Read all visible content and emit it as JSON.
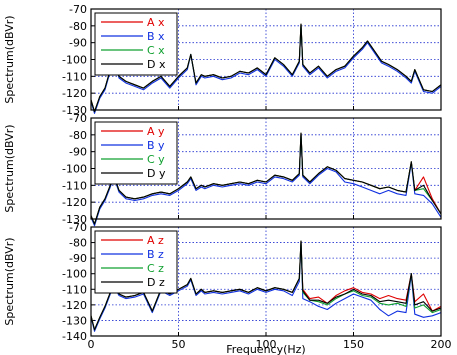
{
  "chart_data": [
    {
      "type": "line",
      "panel": "x",
      "ylabel": "Spectrum(dBVr)",
      "xlim": [
        0,
        200
      ],
      "ylim": [
        -130,
        -70
      ],
      "y_ticks": [
        "-70",
        "-80",
        "-90",
        "-100",
        "-110",
        "-120",
        "-130"
      ],
      "x": [
        0,
        2,
        5,
        8,
        11,
        13,
        16,
        20,
        25,
        30,
        35,
        40,
        45,
        50,
        55,
        57,
        60,
        63,
        65,
        70,
        75,
        80,
        85,
        90,
        95,
        100,
        105,
        110,
        115,
        119,
        120,
        121,
        125,
        130,
        135,
        140,
        145,
        150,
        155,
        158,
        162,
        166,
        170,
        175,
        180,
        183,
        185,
        190,
        195,
        200
      ],
      "series": [
        {
          "name": "A x",
          "color": "#e00000",
          "values": [
            -124,
            -131,
            -122,
            -117,
            -106,
            -98,
            -110,
            -113,
            -115,
            -117,
            -113,
            -110,
            -116,
            -110,
            -105,
            -97,
            -114,
            -109,
            -110,
            -109,
            -111,
            -110,
            -107,
            -108,
            -105,
            -109,
            -99,
            -103,
            -109,
            -101,
            -79,
            -103,
            -108,
            -104,
            -110,
            -106,
            -104,
            -98,
            -93,
            -89,
            -95,
            -101,
            -103,
            -106,
            -110,
            -113,
            -106,
            -118,
            -119,
            -115
          ]
        },
        {
          "name": "B x",
          "color": "#1030e0",
          "values": [
            -125,
            -132,
            -123,
            -118,
            -107,
            -98,
            -111,
            -114,
            -116,
            -118,
            -114,
            -111,
            -117,
            -111,
            -106,
            -97,
            -115,
            -110,
            -111,
            -110,
            -112,
            -111,
            -108,
            -109,
            -106,
            -110,
            -100,
            -104,
            -110,
            -102,
            -80,
            -104,
            -109,
            -105,
            -111,
            -107,
            -105,
            -99,
            -94,
            -90,
            -96,
            -102,
            -104,
            -107,
            -111,
            -114,
            -107,
            -119,
            -120,
            -116
          ]
        },
        {
          "name": "C x",
          "color": "#10a030",
          "values": [
            -124,
            -131,
            -122,
            -117,
            -106,
            -98,
            -110,
            -113,
            -115,
            -117,
            -113,
            -110,
            -116,
            -110,
            -105,
            -97,
            -114,
            -109,
            -110,
            -109,
            -111,
            -110,
            -107,
            -108,
            -105,
            -109,
            -99,
            -103,
            -109,
            -101,
            -79,
            -103,
            -108,
            -104,
            -110,
            -106,
            -104,
            -98,
            -93,
            -89,
            -95,
            -101,
            -103,
            -106,
            -110,
            -113,
            -106,
            -118,
            -119,
            -115
          ]
        },
        {
          "name": "D x",
          "color": "#000000",
          "values": [
            -124,
            -131,
            -122,
            -117,
            -106,
            -98,
            -110,
            -113,
            -115,
            -117,
            -113,
            -110,
            -116,
            -110,
            -105,
            -97,
            -114,
            -109,
            -110,
            -109,
            -111,
            -110,
            -107,
            -108,
            -105,
            -109,
            -99,
            -103,
            -109,
            -101,
            -79,
            -103,
            -108,
            -104,
            -110,
            -106,
            -104,
            -98,
            -93,
            -89,
            -95,
            -101,
            -103,
            -106,
            -110,
            -113,
            -106,
            -118,
            -119,
            -115
          ]
        }
      ]
    },
    {
      "type": "line",
      "panel": "y",
      "ylabel": "Spectrum(dBVr)",
      "xlim": [
        0,
        200
      ],
      "ylim": [
        -130,
        -70
      ],
      "y_ticks": [
        "-70",
        "-80",
        "-90",
        "-100",
        "-110",
        "-120",
        "-130"
      ],
      "x": [
        0,
        2,
        5,
        8,
        11,
        13,
        16,
        20,
        25,
        30,
        35,
        40,
        45,
        50,
        55,
        57,
        60,
        63,
        65,
        70,
        75,
        80,
        85,
        90,
        95,
        100,
        105,
        110,
        115,
        119,
        120,
        121,
        125,
        130,
        135,
        140,
        145,
        150,
        155,
        160,
        165,
        170,
        175,
        180,
        183,
        185,
        190,
        195,
        200
      ],
      "series": [
        {
          "name": "A y",
          "color": "#e00000",
          "values": [
            -128,
            -133,
            -123,
            -118,
            -110,
            -104,
            -113,
            -117,
            -118,
            -117,
            -115,
            -114,
            -115,
            -112,
            -108,
            -105,
            -112,
            -110,
            -111,
            -109,
            -110,
            -109,
            -108,
            -109,
            -107,
            -108,
            -104,
            -105,
            -107,
            -103,
            -79,
            -104,
            -108,
            -103,
            -99,
            -101,
            -106,
            -107,
            -108,
            -110,
            -112,
            -111,
            -113,
            -114,
            -96,
            -113,
            -105,
            -118,
            -127
          ]
        },
        {
          "name": "B y",
          "color": "#1030e0",
          "values": [
            -129,
            -134,
            -124,
            -119,
            -111,
            -105,
            -114,
            -118,
            -119,
            -118,
            -116,
            -115,
            -116,
            -113,
            -109,
            -106,
            -113,
            -111,
            -112,
            -110,
            -111,
            -110,
            -109,
            -110,
            -108,
            -109,
            -105,
            -106,
            -108,
            -104,
            -80,
            -105,
            -109,
            -104,
            -100,
            -102,
            -108,
            -109,
            -111,
            -113,
            -115,
            -113,
            -115,
            -116,
            -97,
            -115,
            -116,
            -121,
            -129
          ]
        },
        {
          "name": "C y",
          "color": "#10a030",
          "values": [
            -128,
            -133,
            -123,
            -118,
            -110,
            -104,
            -113,
            -117,
            -118,
            -117,
            -115,
            -114,
            -115,
            -112,
            -108,
            -105,
            -112,
            -110,
            -111,
            -109,
            -110,
            -109,
            -108,
            -109,
            -107,
            -108,
            -104,
            -105,
            -107,
            -103,
            -79,
            -104,
            -108,
            -103,
            -99,
            -101,
            -106,
            -107,
            -108,
            -110,
            -112,
            -111,
            -113,
            -114,
            -96,
            -113,
            -112,
            -119,
            -127
          ]
        },
        {
          "name": "D y",
          "color": "#000000",
          "values": [
            -128,
            -133,
            -123,
            -118,
            -110,
            -104,
            -113,
            -117,
            -118,
            -117,
            -115,
            -114,
            -115,
            -112,
            -108,
            -105,
            -112,
            -110,
            -111,
            -109,
            -110,
            -109,
            -108,
            -109,
            -107,
            -108,
            -104,
            -105,
            -107,
            -103,
            -79,
            -104,
            -108,
            -103,
            -99,
            -101,
            -106,
            -107,
            -108,
            -110,
            -112,
            -111,
            -113,
            -114,
            -96,
            -113,
            -110,
            -119,
            -127
          ]
        }
      ]
    },
    {
      "type": "line",
      "panel": "z",
      "xlabel": "Frequency(Hz)",
      "ylabel": "Spectrum(dBVr)",
      "xlim": [
        0,
        200
      ],
      "ylim": [
        -140,
        -70
      ],
      "x_ticks": [
        "0",
        "50",
        "100",
        "150",
        "200"
      ],
      "y_ticks": [
        "-70",
        "-80",
        "-90",
        "-100",
        "-110",
        "-120",
        "-130",
        "-140"
      ],
      "x": [
        0,
        2,
        5,
        8,
        11,
        13,
        16,
        20,
        25,
        30,
        35,
        40,
        45,
        50,
        55,
        57,
        60,
        63,
        65,
        70,
        75,
        80,
        85,
        90,
        95,
        100,
        105,
        110,
        115,
        119,
        120,
        121,
        125,
        130,
        135,
        140,
        145,
        150,
        155,
        160,
        165,
        170,
        175,
        180,
        183,
        185,
        190,
        195,
        200
      ],
      "series": [
        {
          "name": "A z",
          "color": "#e00000",
          "values": [
            -127,
            -136,
            -128,
            -121,
            -112,
            -107,
            -113,
            -115,
            -114,
            -112,
            -124,
            -110,
            -113,
            -110,
            -107,
            -103,
            -113,
            -110,
            -112,
            -111,
            -112,
            -111,
            -110,
            -112,
            -109,
            -111,
            -109,
            -110,
            -112,
            -103,
            -79,
            -110,
            -116,
            -115,
            -119,
            -114,
            -111,
            -109,
            -112,
            -113,
            -116,
            -114,
            -116,
            -117,
            -100,
            -118,
            -113,
            -124,
            -121
          ]
        },
        {
          "name": "B z",
          "color": "#1030e0",
          "values": [
            -128,
            -137,
            -129,
            -122,
            -113,
            -108,
            -114,
            -116,
            -115,
            -113,
            -125,
            -111,
            -114,
            -111,
            -108,
            -104,
            -114,
            -111,
            -113,
            -112,
            -113,
            -112,
            -111,
            -113,
            -110,
            -112,
            -110,
            -111,
            -114,
            -105,
            -80,
            -116,
            -118,
            -121,
            -123,
            -119,
            -116,
            -113,
            -115,
            -117,
            -123,
            -127,
            -124,
            -125,
            -101,
            -126,
            -128,
            -127,
            -125
          ]
        },
        {
          "name": "C z",
          "color": "#10a030",
          "values": [
            -127,
            -136,
            -128,
            -121,
            -112,
            -107,
            -113,
            -115,
            -114,
            -112,
            -124,
            -110,
            -113,
            -110,
            -107,
            -103,
            -113,
            -110,
            -112,
            -111,
            -112,
            -111,
            -110,
            -112,
            -109,
            -111,
            -109,
            -110,
            -112,
            -103,
            -79,
            -112,
            -117,
            -118,
            -120,
            -116,
            -113,
            -111,
            -114,
            -115,
            -119,
            -120,
            -119,
            -121,
            -100,
            -122,
            -120,
            -125,
            -123
          ]
        },
        {
          "name": "D z",
          "color": "#000000",
          "values": [
            -127,
            -136,
            -128,
            -121,
            -112,
            -107,
            -113,
            -115,
            -114,
            -112,
            -124,
            -110,
            -113,
            -110,
            -107,
            -103,
            -113,
            -110,
            -112,
            -111,
            -112,
            -111,
            -110,
            -112,
            -109,
            -111,
            -109,
            -110,
            -112,
            -103,
            -79,
            -111,
            -117,
            -117,
            -119,
            -115,
            -113,
            -110,
            -113,
            -114,
            -118,
            -117,
            -118,
            -119,
            -100,
            -120,
            -118,
            -124,
            -122
          ]
        }
      ]
    }
  ]
}
